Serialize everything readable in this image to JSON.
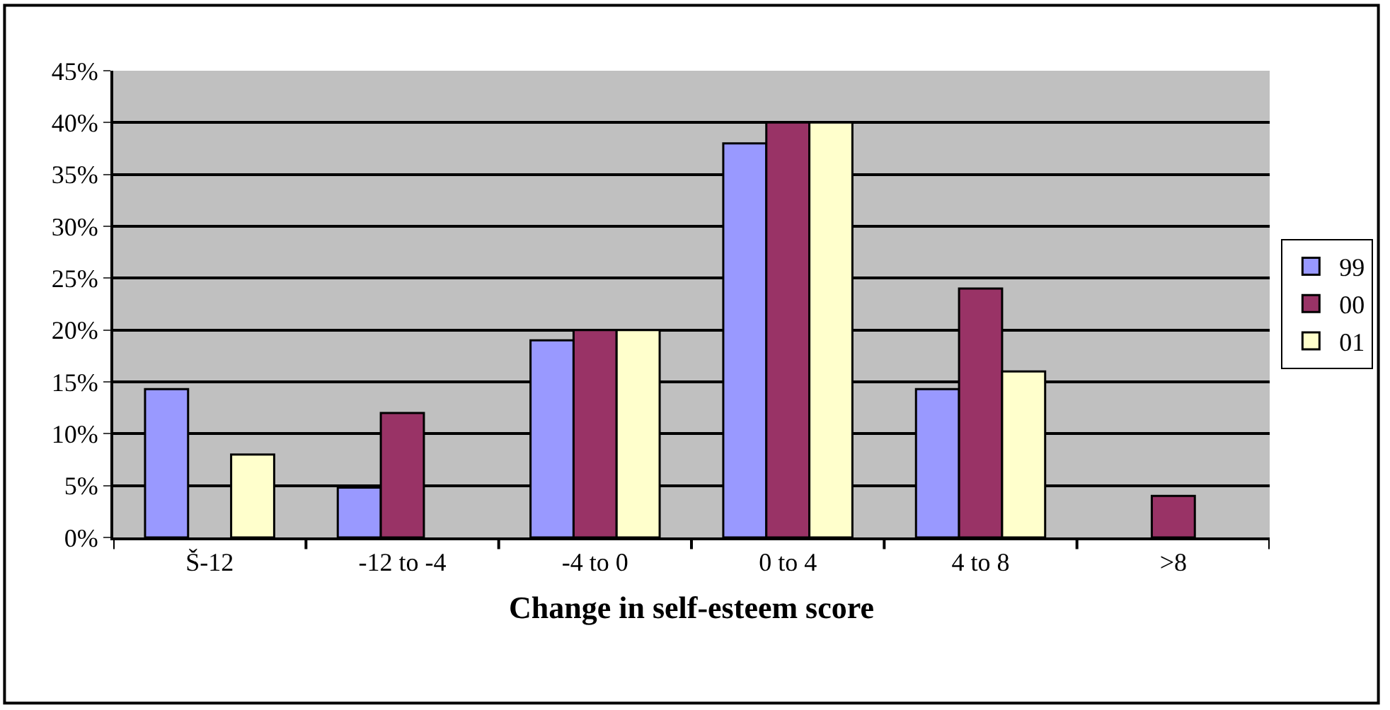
{
  "chart_data": {
    "type": "bar",
    "xlabel": "Change in self-esteem score",
    "categories": [
      "Š-12",
      "-12 to -4",
      "-4 to 0",
      "0 to 4",
      "4 to 8",
      ">8"
    ],
    "series": [
      {
        "name": "99",
        "color": "#9999ff",
        "values": [
          14.3,
          4.8,
          19,
          38,
          14.3,
          null
        ]
      },
      {
        "name": "00",
        "color": "#993366",
        "values": [
          null,
          12,
          20,
          40,
          24,
          4
        ]
      },
      {
        "name": "01",
        "color": "#ffffcc",
        "values": [
          8,
          null,
          20,
          40,
          16,
          null
        ]
      }
    ],
    "ylim": [
      0,
      45
    ],
    "yticks": [
      {
        "value": 0,
        "label": "0%"
      },
      {
        "value": 5,
        "label": "5%"
      },
      {
        "value": 10,
        "label": "10%"
      },
      {
        "value": 15,
        "label": "15%"
      },
      {
        "value": 20,
        "label": "20%"
      },
      {
        "value": 25,
        "label": "25%"
      },
      {
        "value": 30,
        "label": "30%"
      },
      {
        "value": 35,
        "label": "35%"
      },
      {
        "value": 40,
        "label": "40%"
      },
      {
        "value": 45,
        "label": "45%"
      }
    ],
    "grid": "y",
    "legend": "right"
  }
}
